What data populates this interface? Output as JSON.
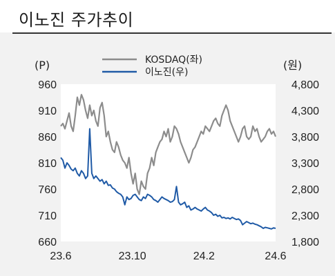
{
  "header": {
    "title": "이노진 주가추이"
  },
  "colors": {
    "kosdaq": "#8c8c8c",
    "stock": "#1f5aa6",
    "background": "#f2f2f2"
  },
  "chart_data": {
    "type": "line",
    "title": "이노진 주가추이",
    "left_unit": "(P)",
    "right_unit": "(원)",
    "x_ticks": [
      "23.6",
      "23.10",
      "24.2",
      "24.6"
    ],
    "y_left_ticks": [
      "960",
      "910",
      "860",
      "810",
      "760",
      "710",
      "660"
    ],
    "y_right_ticks": [
      "4,800",
      "4,300",
      "3,800",
      "3,300",
      "2,800",
      "2,300",
      "1,800"
    ],
    "y_left_range": [
      660,
      960
    ],
    "y_right_range": [
      1800,
      4800
    ],
    "legend_placement": "top-center",
    "series": [
      {
        "name": "KOSDAQ(좌)",
        "axis": "left",
        "values": [
          880,
          885,
          875,
          890,
          905,
          880,
          870,
          900,
          935,
          920,
          940,
          930,
          910,
          895,
          920,
          900,
          910,
          890,
          880,
          915,
          925,
          900,
          860,
          870,
          850,
          835,
          830,
          850,
          840,
          825,
          815,
          810,
          800,
          820,
          790,
          770,
          790,
          760,
          750,
          775,
          765,
          760,
          790,
          800,
          820,
          805,
          830,
          840,
          850,
          855,
          870,
          860,
          875,
          850,
          860,
          880,
          875,
          865,
          850,
          840,
          830,
          820,
          810,
          820,
          835,
          840,
          850,
          860,
          870,
          865,
          880,
          875,
          870,
          880,
          890,
          895,
          885,
          880,
          900,
          910,
          920,
          910,
          890,
          880,
          870,
          860,
          850,
          860,
          875,
          880,
          860,
          855,
          860,
          880,
          870,
          875,
          860,
          850,
          855,
          860,
          870,
          875,
          865,
          870,
          860
        ]
      },
      {
        "name": "이노진(우)",
        "axis": "right",
        "values": [
          3400,
          3350,
          3200,
          3300,
          3250,
          3180,
          3150,
          3200,
          3100,
          3050,
          3150,
          3100,
          3000,
          3050,
          3950,
          3100,
          3000,
          3050,
          3000,
          2950,
          2980,
          2900,
          2950,
          2870,
          2880,
          2820,
          2800,
          2750,
          2720,
          2700,
          2650,
          2500,
          2650,
          2600,
          2620,
          2680,
          2700,
          2650,
          2600,
          2580,
          2650,
          2620,
          2700,
          2680,
          2650,
          2600,
          2580,
          2550,
          2600,
          2650,
          2620,
          2600,
          2580,
          2550,
          2560,
          2600,
          2850,
          2550,
          2500,
          2520,
          2550,
          2450,
          2480,
          2400,
          2420,
          2450,
          2420,
          2400,
          2380,
          2420,
          2450,
          2400,
          2380,
          2350,
          2300,
          2320,
          2280,
          2300,
          2250,
          2260,
          2240,
          2250,
          2230,
          2260,
          2240,
          2220,
          2230,
          2200,
          2120,
          2150,
          2180,
          2160,
          2140,
          2150,
          2130,
          2120,
          2100,
          2080,
          2050,
          2070,
          2060,
          2050,
          2040,
          2060,
          2050
        ]
      }
    ]
  }
}
